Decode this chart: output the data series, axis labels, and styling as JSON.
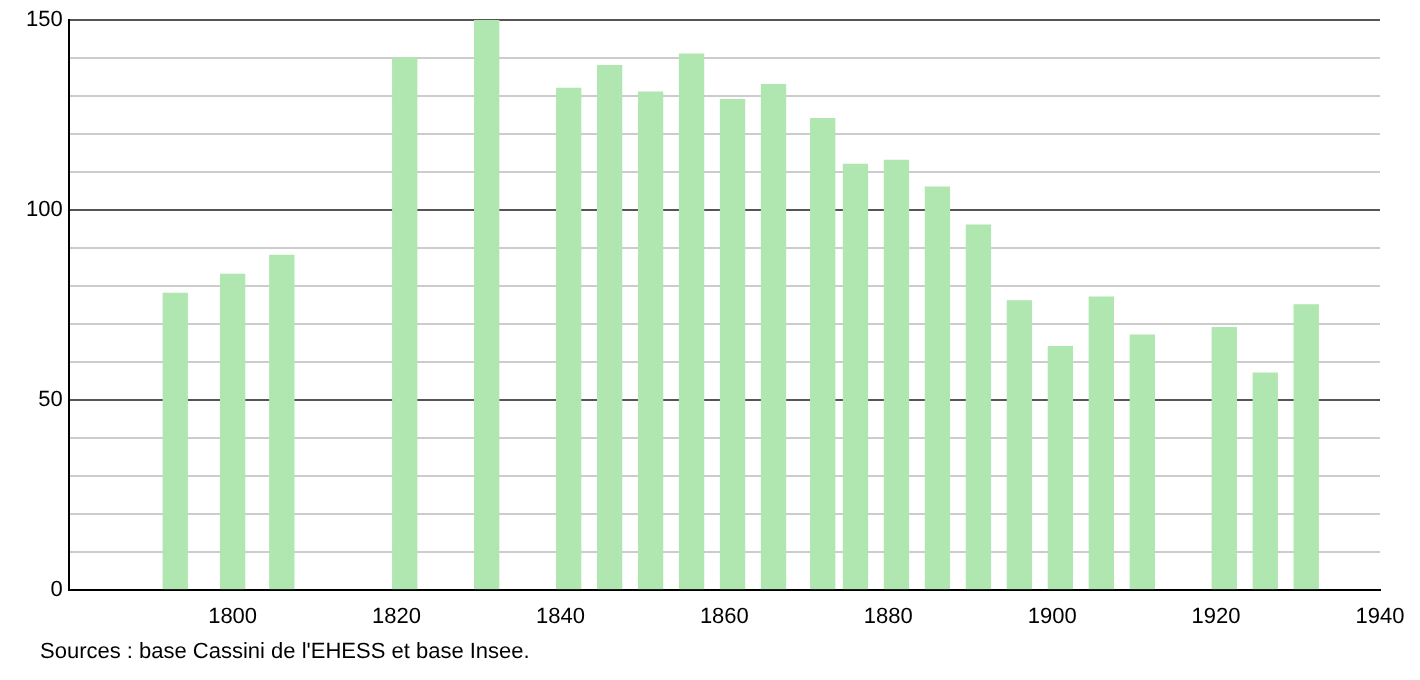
{
  "chart_data": {
    "type": "bar",
    "color": "#b0e6b0",
    "x": [
      1793,
      1800,
      1806,
      1821,
      1831,
      1841,
      1846,
      1851,
      1856,
      1861,
      1866,
      1872,
      1876,
      1881,
      1886,
      1891,
      1896,
      1901,
      1906,
      1911,
      1921,
      1926,
      1931
    ],
    "values": [
      78,
      83,
      88,
      140,
      150,
      132,
      138,
      131,
      141,
      129,
      133,
      124,
      112,
      113,
      106,
      96,
      76,
      64,
      77,
      67,
      69,
      57,
      75
    ],
    "xlim": [
      1780,
      1940
    ],
    "xticks": [
      1800,
      1820,
      1840,
      1860,
      1880,
      1900,
      1920,
      1940
    ],
    "ylim": [
      0,
      150
    ],
    "yticks": [
      0,
      {
        "value": 10,
        "label": null
      },
      {
        "value": 20,
        "label": null
      },
      {
        "value": 30,
        "label": null
      },
      {
        "value": 40,
        "label": null
      },
      50,
      {
        "value": 60,
        "label": null
      },
      {
        "value": 70,
        "label": null
      },
      {
        "value": 80,
        "label": null
      },
      {
        "value": 90,
        "label": null
      },
      100,
      {
        "value": 110,
        "label": null
      },
      {
        "value": 120,
        "label": null
      },
      {
        "value": 130,
        "label": null
      },
      {
        "value": 140,
        "label": null
      },
      150
    ],
    "grid": "y",
    "legend": false,
    "annotations": [
      "Sources : base Cassini de l'EHESS et base Insee."
    ]
  }
}
